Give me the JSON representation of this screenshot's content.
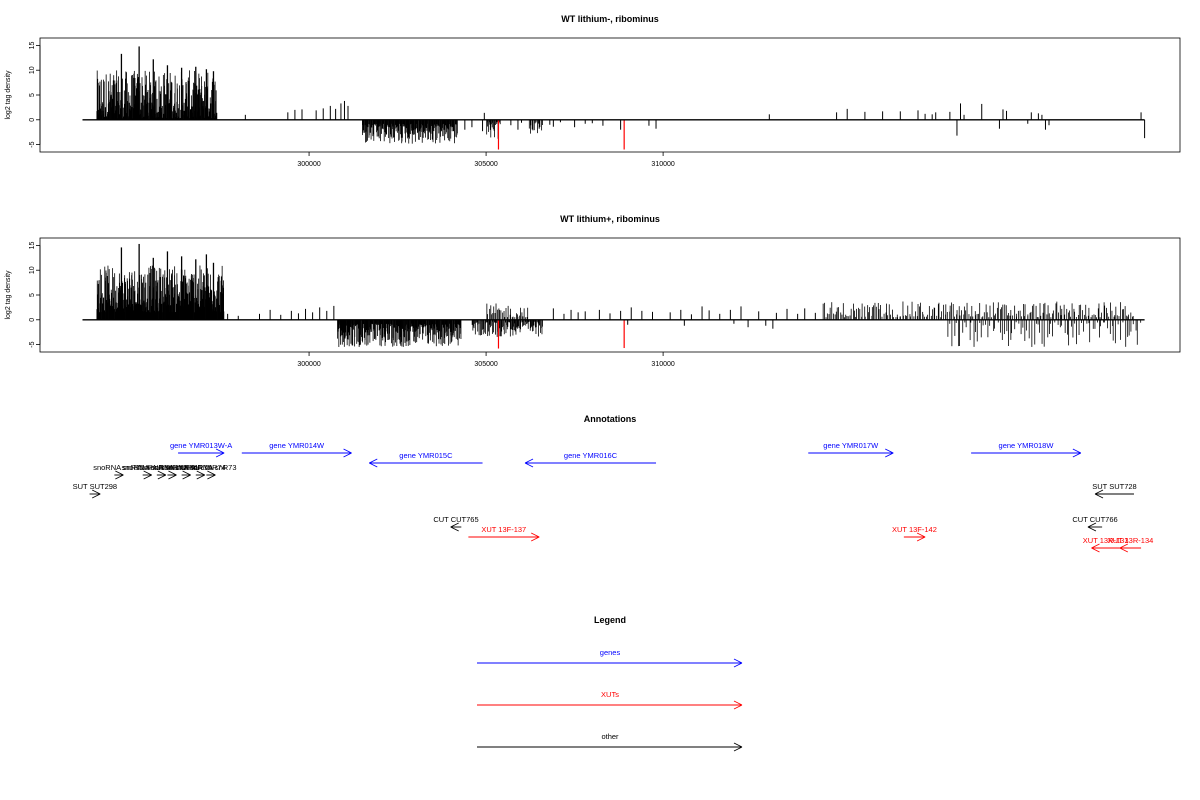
{
  "colors": {
    "gene": "#0000ff",
    "xut": "#ff0000",
    "other": "#000000",
    "red_bar": "#ff0000",
    "bar": "#000000"
  },
  "chart_data": [
    {
      "type": "bar",
      "title": "WT lithium-, ribominus",
      "ylabel": "log2 tag density",
      "xlim": [
        292400,
        324600
      ],
      "ylim": [
        -6.5,
        16.5
      ],
      "xticks": [
        {
          "value": 300000,
          "label": "300000"
        },
        {
          "value": 305000,
          "label": "305000"
        },
        {
          "value": 310000,
          "label": "310000"
        }
      ],
      "yticks": [
        {
          "value": -5,
          "label": "-5"
        },
        {
          "value": 0,
          "label": "0"
        },
        {
          "value": 5,
          "label": "5"
        },
        {
          "value": 10,
          "label": "10"
        },
        {
          "value": 15,
          "label": "15"
        }
      ],
      "baseline": {
        "start": 293600,
        "end": 323600
      },
      "bursts": [
        {
          "start": 294000,
          "end": 297400,
          "sign": 1,
          "count": 360,
          "min": 0.3,
          "max": 10,
          "peaks": [
            [
              294700,
              13.3
            ],
            [
              295200,
              14.8
            ],
            [
              295600,
              12.2
            ],
            [
              296000,
              11.0
            ],
            [
              296400,
              10.5
            ],
            [
              296800,
              10.7
            ],
            [
              297100,
              10.2
            ],
            [
              297300,
              9.8
            ]
          ]
        },
        {
          "start": 301500,
          "end": 304200,
          "sign": -1,
          "count": 220,
          "min": 0.8,
          "max": 5,
          "peaks": []
        },
        {
          "start": 305000,
          "end": 305400,
          "sign": -1,
          "count": 22,
          "min": 0.5,
          "max": 4,
          "peaks": []
        },
        {
          "start": 306200,
          "end": 306600,
          "sign": -1,
          "count": 14,
          "min": 0.5,
          "max": 3,
          "peaks": []
        }
      ],
      "bars": [
        [
          298200,
          1.0
        ],
        [
          299400,
          1.5
        ],
        [
          299600,
          2.0
        ],
        [
          299800,
          2.1
        ],
        [
          300200,
          1.9
        ],
        [
          300400,
          2.3
        ],
        [
          300600,
          2.8
        ],
        [
          300750,
          2.2
        ],
        [
          300900,
          3.3
        ],
        [
          301000,
          3.8
        ],
        [
          301100,
          2.8
        ],
        [
          304400,
          -2.0
        ],
        [
          304600,
          -1.5
        ],
        [
          304900,
          -2.3
        ],
        [
          304950,
          1.4
        ],
        [
          305700,
          -1.1
        ],
        [
          305900,
          -2.0
        ],
        [
          306000,
          -0.6
        ],
        [
          306500,
          -1.8
        ],
        [
          306800,
          -1.0
        ],
        [
          306900,
          -1.4
        ],
        [
          307100,
          -0.5
        ],
        [
          307500,
          -1.5
        ],
        [
          307800,
          -0.8
        ],
        [
          308000,
          -0.7
        ],
        [
          308300,
          -1.2
        ],
        [
          308800,
          -2.0
        ],
        [
          309600,
          -1.2
        ],
        [
          309800,
          -1.8
        ],
        [
          313000,
          1.1
        ],
        [
          314900,
          1.5
        ],
        [
          315200,
          2.2
        ],
        [
          315700,
          1.6
        ],
        [
          316200,
          1.7
        ],
        [
          316700,
          1.7
        ],
        [
          317200,
          1.9
        ],
        [
          317400,
          1.2
        ],
        [
          317600,
          1.1
        ],
        [
          317700,
          1.5
        ],
        [
          318100,
          1.6
        ],
        [
          318400,
          3.3
        ],
        [
          318500,
          1.0
        ],
        [
          318300,
          -3.2
        ],
        [
          319000,
          3.2
        ],
        [
          319500,
          -1.8
        ],
        [
          319600,
          2.1
        ],
        [
          319700,
          1.8
        ],
        [
          320300,
          -0.8
        ],
        [
          320400,
          1.5
        ],
        [
          320600,
          1.3
        ],
        [
          320700,
          1.0
        ],
        [
          320800,
          -2.0
        ],
        [
          320900,
          -1.1
        ],
        [
          323600,
          -3.7
        ],
        [
          323500,
          1.5
        ]
      ],
      "red_bars": [
        [
          305350,
          -6.0
        ],
        [
          308900,
          -6.0
        ]
      ]
    },
    {
      "type": "bar",
      "title": "WT lithium+, ribominus",
      "ylabel": "log2 tag density",
      "xlim": [
        292400,
        324600
      ],
      "ylim": [
        -6.5,
        16.5
      ],
      "xticks": [
        {
          "value": 300000,
          "label": "300000"
        },
        {
          "value": 305000,
          "label": "305000"
        },
        {
          "value": 310000,
          "label": "310000"
        }
      ],
      "yticks": [
        {
          "value": -5,
          "label": "-5"
        },
        {
          "value": 0,
          "label": "0"
        },
        {
          "value": 5,
          "label": "5"
        },
        {
          "value": 10,
          "label": "10"
        },
        {
          "value": 15,
          "label": "15"
        }
      ],
      "baseline": {
        "start": 293600,
        "end": 323600
      },
      "bursts": [
        {
          "start": 294000,
          "end": 297600,
          "sign": 1,
          "count": 420,
          "min": 1.5,
          "max": 11,
          "peaks": [
            [
              294700,
              14.6
            ],
            [
              295200,
              15.3
            ],
            [
              295600,
              12.5
            ],
            [
              296000,
              13.8
            ],
            [
              296400,
              12.8
            ],
            [
              296800,
              12.2
            ],
            [
              297100,
              13.2
            ],
            [
              297300,
              11.5
            ]
          ]
        },
        {
          "start": 300800,
          "end": 304300,
          "sign": -1,
          "count": 300,
          "min": 0.8,
          "max": 5.5,
          "peaks": []
        },
        {
          "start": 304600,
          "end": 306600,
          "sign": -1,
          "count": 110,
          "min": 0.4,
          "max": 3.5,
          "peaks": []
        },
        {
          "start": 305000,
          "end": 306200,
          "sign": 1,
          "count": 35,
          "min": 0.5,
          "max": 3.3,
          "peaks": []
        },
        {
          "start": 314500,
          "end": 323300,
          "sign": 1,
          "count": 220,
          "min": 0.5,
          "max": 3.7,
          "peaks": []
        },
        {
          "start": 318000,
          "end": 323500,
          "sign": -1,
          "count": 90,
          "min": 0.5,
          "max": 5.5,
          "peaks": []
        }
      ],
      "bars": [
        [
          297700,
          1.2
        ],
        [
          298000,
          0.8
        ],
        [
          298600,
          1.2
        ],
        [
          298900,
          2.0
        ],
        [
          299200,
          1.0
        ],
        [
          299500,
          1.8
        ],
        [
          299700,
          1.3
        ],
        [
          299900,
          2.2
        ],
        [
          300100,
          1.5
        ],
        [
          300300,
          2.5
        ],
        [
          300500,
          1.8
        ],
        [
          300700,
          2.8
        ],
        [
          306900,
          2.3
        ],
        [
          307200,
          1.2
        ],
        [
          307400,
          2.0
        ],
        [
          307600,
          1.5
        ],
        [
          307800,
          1.7
        ],
        [
          308200,
          2.0
        ],
        [
          308500,
          1.3
        ],
        [
          308800,
          1.8
        ],
        [
          309100,
          2.5
        ],
        [
          309400,
          1.8
        ],
        [
          309700,
          1.6
        ],
        [
          310200,
          1.5
        ],
        [
          310500,
          2.0
        ],
        [
          310800,
          1.1
        ],
        [
          311100,
          2.7
        ],
        [
          311300,
          1.9
        ],
        [
          311600,
          1.2
        ],
        [
          311900,
          2.0
        ],
        [
          312200,
          2.7
        ],
        [
          312400,
          -1.5
        ],
        [
          312700,
          1.7
        ],
        [
          312900,
          -1.2
        ],
        [
          313200,
          1.4
        ],
        [
          313500,
          2.2
        ],
        [
          313800,
          1.2
        ],
        [
          314000,
          2.3
        ],
        [
          314300,
          1.4
        ],
        [
          309000,
          -1.0
        ],
        [
          310600,
          -1.2
        ],
        [
          312000,
          -0.8
        ],
        [
          313100,
          -1.8
        ]
      ],
      "red_bars": [
        [
          305350,
          -5.8
        ],
        [
          308900,
          -5.7
        ]
      ]
    }
  ],
  "annotations": {
    "title": "Annotations",
    "xlim": [
      292400,
      324600
    ],
    "items": [
      {
        "label": "gene YMR013W-A",
        "start": 296300,
        "end": 297600,
        "dir": "right",
        "row": 0,
        "type": "gene"
      },
      {
        "label": "gene YMR014W",
        "start": 298100,
        "end": 301200,
        "dir": "right",
        "row": 0,
        "type": "gene"
      },
      {
        "label": "gene YMR015C",
        "start": 301700,
        "end": 304900,
        "dir": "left",
        "row": 1,
        "type": "gene"
      },
      {
        "label": "gene YMR016C",
        "start": 306100,
        "end": 309800,
        "dir": "left",
        "row": 1,
        "type": "gene"
      },
      {
        "label": "gene YMR017W",
        "start": 314100,
        "end": 316500,
        "dir": "right",
        "row": 0,
        "type": "gene"
      },
      {
        "label": "gene YMR018W",
        "start": 318700,
        "end": 321800,
        "dir": "right",
        "row": 0,
        "type": "gene"
      },
      {
        "label": "snoRNA snR72",
        "start": 294500,
        "end": 294600,
        "dir": "right",
        "row": 2,
        "type": "other"
      },
      {
        "label": "snoRNA snR78",
        "start": 295300,
        "end": 295400,
        "dir": "right",
        "row": 2,
        "type": "other"
      },
      {
        "label": "snoRNA snR77",
        "start": 295700,
        "end": 295800,
        "dir": "right",
        "row": 2,
        "type": "other"
      },
      {
        "label": "snoRNA snR76",
        "start": 296000,
        "end": 296100,
        "dir": "right",
        "row": 2,
        "type": "other"
      },
      {
        "label": "snoRNA snR75",
        "start": 296400,
        "end": 296500,
        "dir": "right",
        "row": 2,
        "type": "other"
      },
      {
        "label": "snoRNA snR74",
        "start": 296800,
        "end": 296900,
        "dir": "right",
        "row": 2,
        "type": "other"
      },
      {
        "label": "snoRNA snR73",
        "start": 297100,
        "end": 297200,
        "dir": "right",
        "row": 2,
        "type": "other"
      },
      {
        "label": "SUT SUT298",
        "start": 293800,
        "end": 294100,
        "dir": "right",
        "row": 3,
        "type": "other"
      },
      {
        "label": "SUT SUT728",
        "start": 322200,
        "end": 323300,
        "dir": "left",
        "row": 3,
        "type": "other"
      },
      {
        "label": "CUT CUT765",
        "start": 304000,
        "end": 304300,
        "dir": "left",
        "row": 4,
        "type": "other"
      },
      {
        "label": "CUT CUT766",
        "start": 322000,
        "end": 322400,
        "dir": "left",
        "row": 4,
        "type": "other"
      },
      {
        "label": "XUT 13F-137",
        "start": 304500,
        "end": 306500,
        "dir": "right",
        "row": 5,
        "type": "xut"
      },
      {
        "label": "XUT 13F-142",
        "start": 316800,
        "end": 317400,
        "dir": "right",
        "row": 5,
        "type": "xut"
      },
      {
        "label": "XUT 13R-133",
        "start": 322100,
        "end": 322900,
        "dir": "left",
        "row": 6,
        "type": "xut"
      },
      {
        "label": "XUT 13R-134",
        "start": 322900,
        "end": 323500,
        "dir": "left",
        "row": 6,
        "type": "xut"
      }
    ]
  },
  "legend": {
    "title": "Legend",
    "items": [
      {
        "label": "genes",
        "type": "gene"
      },
      {
        "label": "XUTs",
        "type": "xut"
      },
      {
        "label": "other",
        "type": "other"
      }
    ]
  }
}
